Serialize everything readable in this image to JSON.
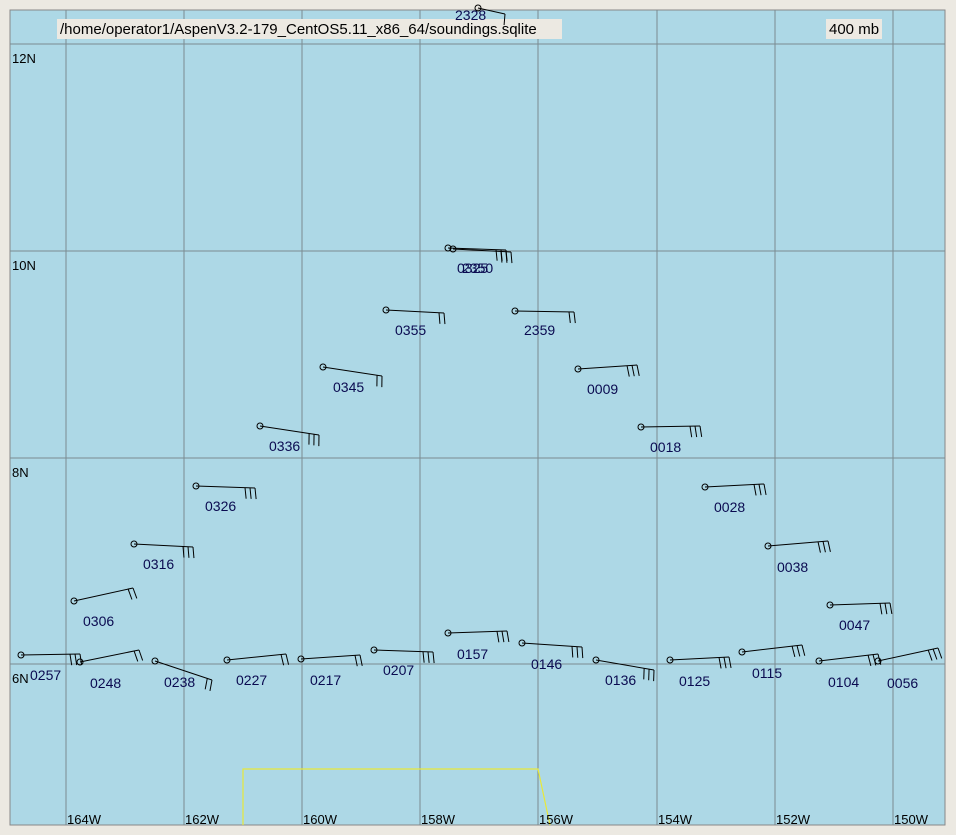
{
  "header": {
    "file": "/home/operator1/AspenV3.2-179_CentOS5.11_x86_64/soundings.sqlite",
    "level": "400 mb"
  },
  "lat_labels": [
    "12N",
    "10N",
    "8N",
    "6N"
  ],
  "lon_labels": [
    "164W",
    "162W",
    "160W",
    "158W",
    "156W",
    "154W",
    "152W",
    "150W"
  ],
  "stations": [
    "2328",
    "0325",
    "2350",
    "0355",
    "2359",
    "0345",
    "0009",
    "0336",
    "0018",
    "0326",
    "0028",
    "0316",
    "0038",
    "0306",
    "0047",
    "0257",
    "0248",
    "0238",
    "0227",
    "0217",
    "0207",
    "0157",
    "0146",
    "0136",
    "0125",
    "0115",
    "0104",
    "0056"
  ]
}
